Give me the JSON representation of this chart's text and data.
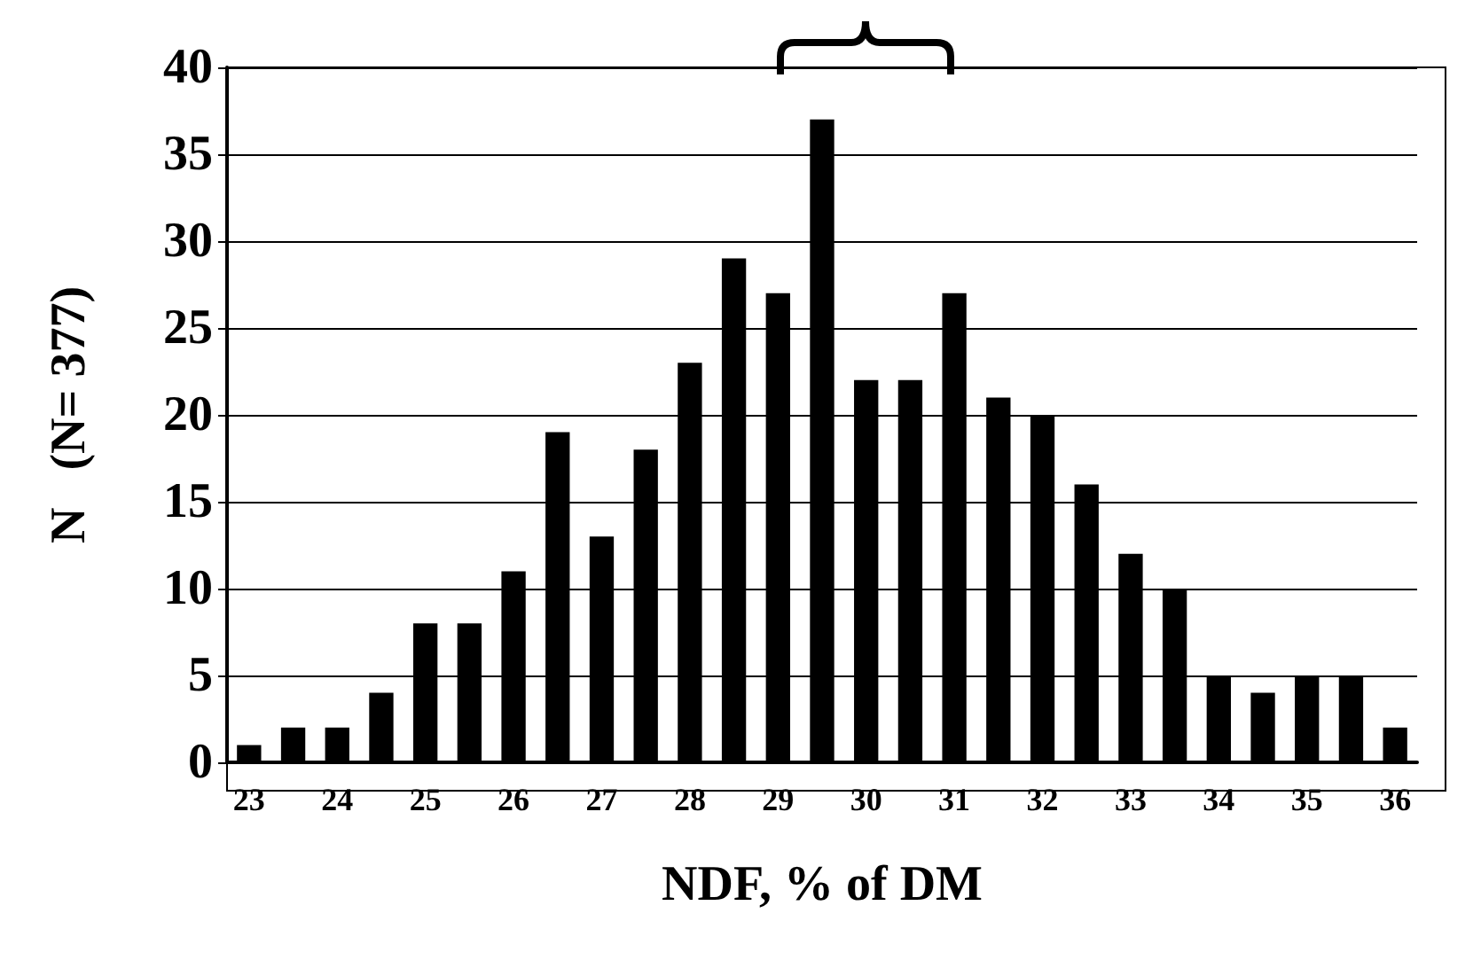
{
  "chart_data": {
    "type": "bar",
    "xlabel": "NDF, % of DM",
    "ylabel": "N   (N= 377)",
    "categories": [
      "23",
      null,
      "24",
      null,
      "25",
      null,
      "26",
      null,
      "27",
      null,
      "28",
      null,
      "29",
      null,
      "30",
      null,
      "31",
      null,
      "32",
      null,
      "33",
      null,
      "34",
      null,
      "35",
      null,
      "36"
    ],
    "values": [
      1,
      2,
      2,
      4,
      8,
      8,
      11,
      19,
      13,
      18,
      23,
      29,
      27,
      37,
      22,
      22,
      27,
      21,
      20,
      16,
      12,
      10,
      5,
      4,
      5,
      5,
      2
    ],
    "color": "#000000",
    "ylim": [
      0,
      40
    ],
    "yticks": [
      0,
      5,
      10,
      15,
      20,
      25,
      30,
      35,
      40
    ],
    "grid": "y"
  }
}
